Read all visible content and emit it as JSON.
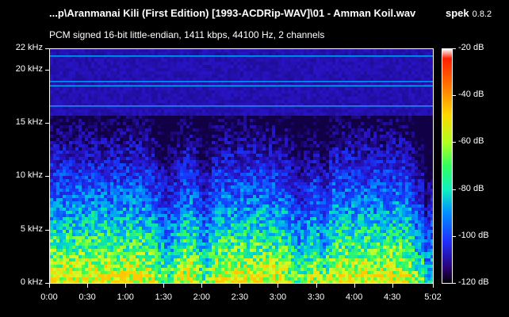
{
  "header": {
    "file_title": "...p\\Aranmanai Kili (First Edition) [1993-ACDRip-WAV]\\01 - Amman Koil.wav",
    "app_name": "spek",
    "app_version": "0.8.2",
    "stream_info": "PCM signed 16-bit little-endian, 1411 kbps, 44100 Hz, 2 channels"
  },
  "spectrogram": {
    "freq_labels": [
      "22 kHz",
      "20 kHz",
      "15 kHz",
      "10 kHz",
      "5 kHz",
      "0 kHz"
    ],
    "freq_values_khz": [
      22,
      20,
      15,
      10,
      5,
      0
    ],
    "freq_max_khz": 22,
    "time_labels": [
      "0:00",
      "0:30",
      "1:00",
      "1:30",
      "2:00",
      "2:30",
      "3:00",
      "3:30",
      "4:00",
      "4:30",
      "5:02"
    ],
    "time_values_s": [
      0,
      30,
      60,
      90,
      120,
      150,
      180,
      210,
      240,
      270,
      302
    ],
    "duration_s": 302,
    "db_labels": [
      "-20 dB",
      "-40 dB",
      "-60 dB",
      "-80 dB",
      "-100 dB",
      "-120 dB"
    ],
    "db_values": [
      -20,
      -40,
      -60,
      -80,
      -100,
      -120
    ],
    "db_range": [
      -120,
      -20
    ],
    "horizontal_lines_khz": [
      21.4,
      19.0,
      18.6,
      16.7
    ]
  }
}
